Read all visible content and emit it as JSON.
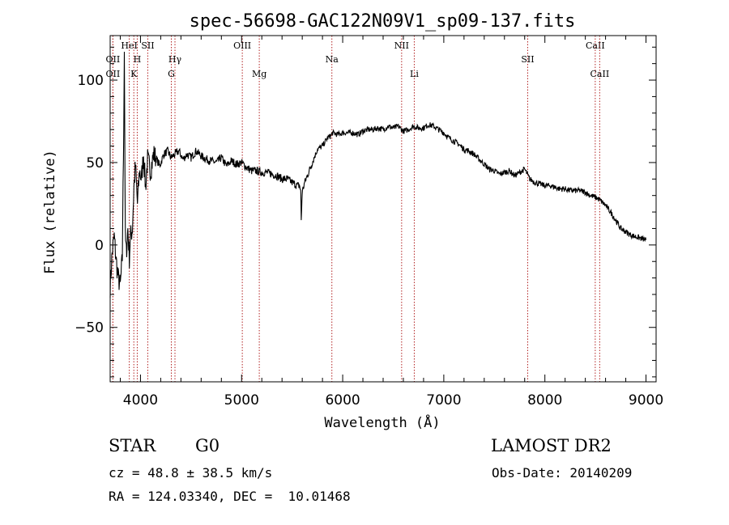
{
  "chart_data": {
    "type": "line",
    "title": "spec-56698-GAC122N09V1_sp09-137.fits",
    "xlabel": "Wavelength (Å)",
    "ylabel": "Flux (relative)",
    "xlim": [
      3700,
      9100
    ],
    "ylim": [
      -83,
      127
    ],
    "xticks": [
      4000,
      5000,
      6000,
      7000,
      8000,
      9000
    ],
    "yticks": [
      -50,
      0,
      50,
      100
    ],
    "xtick_labels": [
      "4000",
      "5000",
      "6000",
      "7000",
      "8000",
      "9000"
    ],
    "ytick_labels": [
      "−50",
      "0",
      "50",
      "100"
    ],
    "line_color": "#000000",
    "marker_color": "#b22222",
    "series": [
      {
        "x": [
          3700,
          3720,
          3740,
          3760,
          3780,
          3800,
          3820,
          3835,
          3840,
          3850,
          3860,
          3875,
          3890,
          3900,
          3920,
          3935,
          3950,
          3970,
          3990,
          4010,
          4030,
          4050,
          4070,
          4100,
          4130,
          4160,
          4190,
          4230,
          4270,
          4300,
          4340,
          4380,
          4420,
          4460,
          4500,
          4550,
          4600,
          4650,
          4700,
          4750,
          4800,
          4850,
          4900,
          4950,
          5000,
          5050,
          5100,
          5150,
          5200,
          5250,
          5300,
          5350,
          5400,
          5450,
          5500,
          5550,
          5575,
          5585,
          5590,
          5600,
          5620,
          5650,
          5700,
          5750,
          5800,
          5850,
          5880,
          5900,
          5950,
          6000,
          6050,
          6100,
          6150,
          6200,
          6250,
          6300,
          6350,
          6400,
          6450,
          6500,
          6550,
          6600,
          6650,
          6700,
          6750,
          6800,
          6850,
          6900,
          6950,
          7000,
          7050,
          7100,
          7150,
          7200,
          7250,
          7300,
          7350,
          7400,
          7450,
          7500,
          7550,
          7600,
          7650,
          7700,
          7750,
          7800,
          7850,
          7900,
          7950,
          8000,
          8050,
          8100,
          8150,
          8200,
          8250,
          8300,
          8350,
          8400,
          8450,
          8500,
          8550,
          8600,
          8650,
          8700,
          8750,
          8800,
          8850,
          8900,
          8950,
          9000
        ],
        "y": [
          -25,
          -5,
          5,
          -10,
          -20,
          -25,
          -8,
          75,
          120,
          5,
          -5,
          10,
          -8,
          5,
          10,
          35,
          48,
          25,
          45,
          40,
          55,
          35,
          52,
          45,
          55,
          52,
          48,
          55,
          57,
          53,
          55,
          57,
          52,
          55,
          53,
          57,
          54,
          52,
          51,
          50,
          53,
          48,
          51,
          49,
          50,
          47,
          45,
          45,
          44,
          44,
          43,
          42,
          40,
          40,
          38,
          36,
          36,
          32,
          15,
          32,
          37,
          42,
          50,
          58,
          60,
          65,
          66,
          68,
          67,
          68,
          68,
          68,
          67,
          69,
          70,
          70,
          71,
          70,
          72,
          71,
          72,
          69,
          70,
          72,
          71,
          71,
          73,
          72,
          70,
          68,
          65,
          63,
          61,
          58,
          57,
          55,
          52,
          49,
          46,
          45,
          43,
          44,
          45,
          42,
          44,
          46,
          40,
          38,
          37,
          36,
          36,
          35,
          34,
          34,
          33,
          33,
          33,
          32,
          30,
          29,
          27,
          24,
          20,
          15,
          10,
          8,
          6,
          5,
          4,
          3
        ]
      }
    ],
    "lines": [
      {
        "name": "OII",
        "x": 3727,
        "row": 1
      },
      {
        "name": "OII",
        "x": 3727,
        "row": 2
      },
      {
        "name": "HeI",
        "x": 3889,
        "row": 0
      },
      {
        "name": "H",
        "x": 3968,
        "row": 1
      },
      {
        "name": "K",
        "x": 3934,
        "row": 2
      },
      {
        "name": "SII",
        "x": 4072,
        "row": 0
      },
      {
        "name": "Hγ",
        "x": 4341,
        "row": 1
      },
      {
        "name": "G",
        "x": 4305,
        "row": 2
      },
      {
        "name": "OIII",
        "x": 5007,
        "row": 0
      },
      {
        "name": "Mg",
        "x": 5175,
        "row": 2
      },
      {
        "name": "Na",
        "x": 5893,
        "row": 1
      },
      {
        "name": "NII",
        "x": 6583,
        "row": 0
      },
      {
        "name": "Li",
        "x": 6708,
        "row": 2
      },
      {
        "name": "SII",
        "x": 7830,
        "row": 1
      },
      {
        "name": "CaII",
        "x": 8498,
        "row": 0
      },
      {
        "name": "CaII",
        "x": 8542,
        "row": 2
      }
    ]
  },
  "info": {
    "object_class": "STAR",
    "subclass": "G0",
    "survey": "LAMOST DR2",
    "redshift": "cz = 48.8 ± 38.5 km/s",
    "obs_date": "Obs-Date: 20140209",
    "coords": "RA = 124.03340, DEC =  10.01468"
  }
}
